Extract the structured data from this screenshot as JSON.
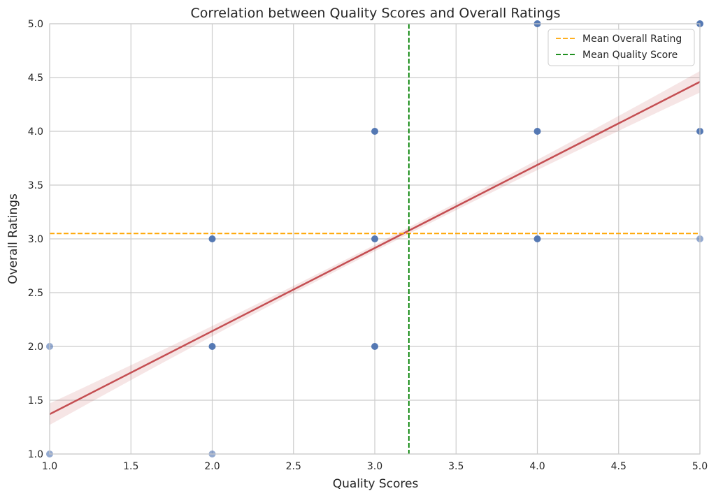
{
  "chart_data": {
    "type": "scatter",
    "title": "Correlation between Quality Scores and Overall Ratings",
    "xlabel": "Quality Scores",
    "ylabel": "Overall Ratings",
    "xlim": [
      1.0,
      5.0
    ],
    "ylim": [
      1.0,
      5.0
    ],
    "xticks": [
      "1.0",
      "1.5",
      "2.0",
      "2.5",
      "3.0",
      "3.5",
      "4.0",
      "4.5",
      "5.0"
    ],
    "yticks": [
      "1.0",
      "1.5",
      "2.0",
      "2.5",
      "3.0",
      "3.5",
      "4.0",
      "4.5",
      "5.0"
    ],
    "grid": true,
    "legend_position": "top-right",
    "points": [
      {
        "x": 1,
        "y": 1,
        "density": "low"
      },
      {
        "x": 1,
        "y": 2,
        "density": "low"
      },
      {
        "x": 2,
        "y": 1,
        "density": "low"
      },
      {
        "x": 2,
        "y": 2,
        "density": "high"
      },
      {
        "x": 2,
        "y": 3,
        "density": "high"
      },
      {
        "x": 3,
        "y": 2,
        "density": "high"
      },
      {
        "x": 3,
        "y": 3,
        "density": "high"
      },
      {
        "x": 3,
        "y": 4,
        "density": "high"
      },
      {
        "x": 4,
        "y": 3,
        "density": "high"
      },
      {
        "x": 4,
        "y": 4,
        "density": "high"
      },
      {
        "x": 4,
        "y": 5,
        "density": "high"
      },
      {
        "x": 5,
        "y": 3,
        "density": "low"
      },
      {
        "x": 5,
        "y": 4,
        "density": "high"
      },
      {
        "x": 5,
        "y": 5,
        "density": "high"
      }
    ],
    "regression": {
      "start": {
        "x": 1.0,
        "y": 1.37
      },
      "end": {
        "x": 5.0,
        "y": 4.46
      },
      "ci_at_start": 0.1,
      "ci_at_mid": 0.03,
      "ci_at_end": 0.1,
      "color": "#c44e52"
    },
    "reference_lines": [
      {
        "name": "Mean Overall Rating",
        "orientation": "horizontal",
        "value": 3.05,
        "color": "#ffa500"
      },
      {
        "name": "Mean Quality Score",
        "orientation": "vertical",
        "value": 3.21,
        "color": "#008000"
      }
    ],
    "point_color": "#4c72b0"
  }
}
